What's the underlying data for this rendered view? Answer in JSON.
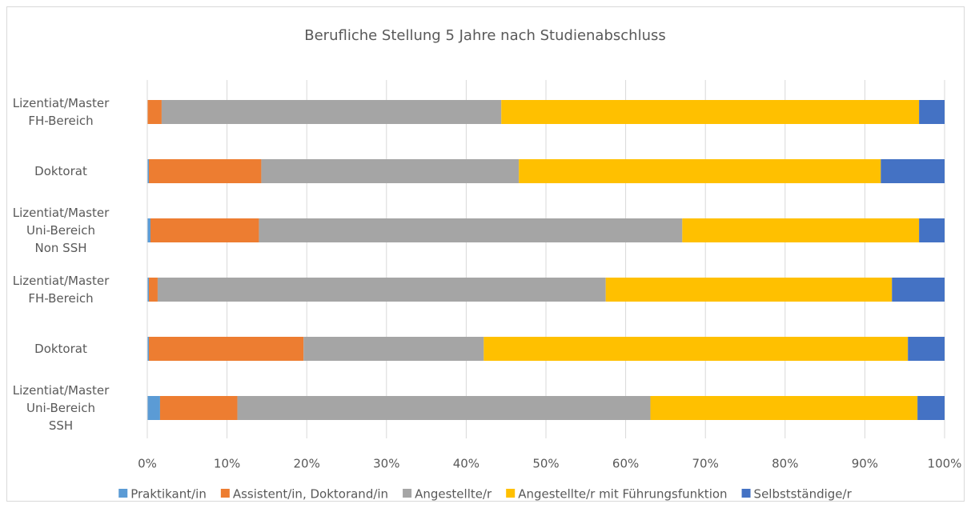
{
  "chart_data": {
    "type": "stacked_barh",
    "title": "Berufliche Stellung 5 Jahre nach Studienabschluss",
    "categories": [
      "Lizentiat/Master\nFH-Bereich",
      "Doktorat",
      "Lizentiat/Master\nUni-Bereich\nNon SSH",
      "Lizentiat/Master\nFH-Bereich",
      "Doktorat",
      "Lizentiat/Master\nUni-Bereich\nSSH"
    ],
    "series": [
      {
        "name": "Praktikant/in",
        "color": "#5b9bd5",
        "values": [
          0,
          0.2,
          0.4,
          0.2,
          0.2,
          1.6
        ]
      },
      {
        "name": "Assistent/in, Doktorand/in",
        "color": "#ed7d31",
        "values": [
          1.8,
          14.1,
          13.6,
          1.1,
          19.4,
          9.7
        ]
      },
      {
        "name": "Angestellte/r",
        "color": "#a5a5a5",
        "values": [
          42.6,
          32.3,
          53.1,
          56.2,
          22.6,
          51.8
        ]
      },
      {
        "name": "Angestellte/r mit Führungsfunktion",
        "color": "#ffc000",
        "values": [
          52.4,
          45.4,
          29.7,
          35.9,
          53.2,
          33.5
        ]
      },
      {
        "name": "Selbstständige/r",
        "color": "#4472c4",
        "values": [
          3.2,
          8.0,
          3.2,
          6.6,
          4.6,
          3.4
        ]
      }
    ],
    "xlim": [
      0,
      100
    ],
    "xticks": [
      {
        "value": 0,
        "label": "0%"
      },
      {
        "value": 10,
        "label": "10%"
      },
      {
        "value": 20,
        "label": "20%"
      },
      {
        "value": 30,
        "label": "30%"
      },
      {
        "value": 40,
        "label": "40%"
      },
      {
        "value": 50,
        "label": "50%"
      },
      {
        "value": 60,
        "label": "60%"
      },
      {
        "value": 70,
        "label": "70%"
      },
      {
        "value": 80,
        "label": "80%"
      },
      {
        "value": 90,
        "label": "90%"
      },
      {
        "value": 100,
        "label": "100%"
      }
    ],
    "grid": true,
    "legend": "bottom"
  }
}
